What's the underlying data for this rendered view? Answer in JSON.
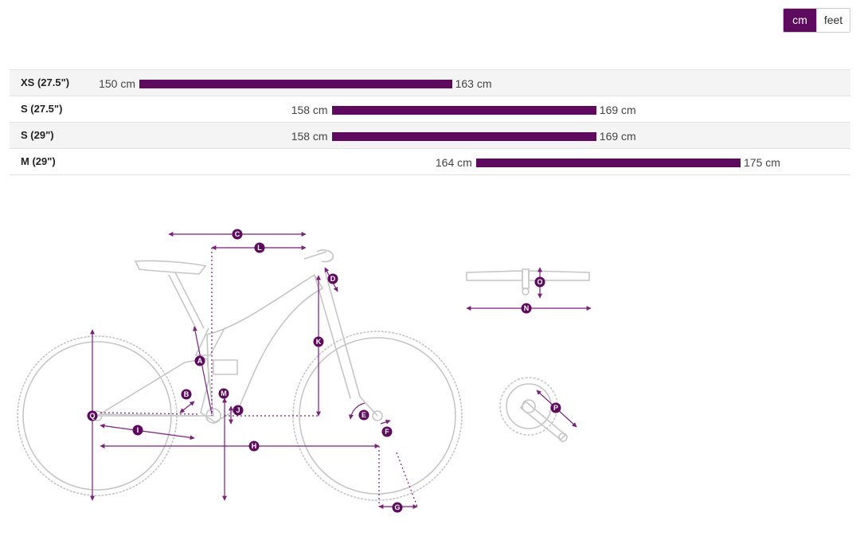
{
  "units": {
    "options": [
      "cm",
      "feet"
    ],
    "selected": "cm"
  },
  "colors": {
    "accent": "#5e0a5e",
    "bike_outline": "#c6c6c6",
    "row_alt": "#f4f4f4"
  },
  "sizes": [
    {
      "label": "XS (27.5\")",
      "min": 150,
      "max": 163,
      "min_label": "150 cm",
      "max_label": "163 cm"
    },
    {
      "label": "S (27.5\")",
      "min": 158,
      "max": 169,
      "min_label": "158 cm",
      "max_label": "169 cm"
    },
    {
      "label": "S (29\")",
      "min": 158,
      "max": 169,
      "min_label": "158 cm",
      "max_label": "169 cm"
    },
    {
      "label": "M (29\")",
      "min": 164,
      "max": 175,
      "min_label": "164 cm",
      "max_label": "175 cm"
    }
  ],
  "geometry_markers": [
    "A",
    "B",
    "C",
    "D",
    "E",
    "F",
    "G",
    "H",
    "I",
    "J",
    "K",
    "L",
    "M",
    "N",
    "O",
    "P",
    "Q"
  ]
}
